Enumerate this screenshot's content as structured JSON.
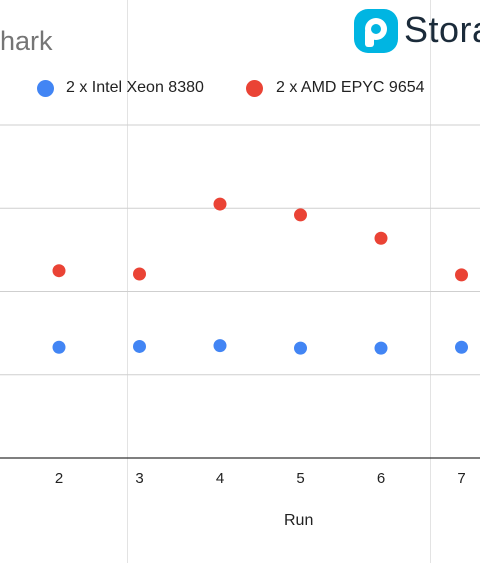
{
  "title_fragment": "hark",
  "logo": {
    "text": "Stora",
    "color": "#00b5e2"
  },
  "colors": {
    "intel": "#4285f4",
    "amd": "#ea4335"
  },
  "chart_data": {
    "type": "scatter",
    "xlabel": "Run",
    "x": [
      2,
      3,
      4,
      5,
      6,
      7
    ],
    "y_gridlines": 4,
    "series": [
      {
        "name": "2 x Intel Xeon 8380",
        "color": "#4285f4",
        "values": [
          1.33,
          1.34,
          1.35,
          1.32,
          1.32,
          1.33
        ]
      },
      {
        "name": "2 x AMD EPYC 9654",
        "color": "#ea4335",
        "values": [
          2.25,
          2.21,
          3.05,
          2.92,
          2.64,
          2.2
        ]
      }
    ],
    "ylim": [
      0,
      4
    ],
    "legend_position": "top"
  }
}
